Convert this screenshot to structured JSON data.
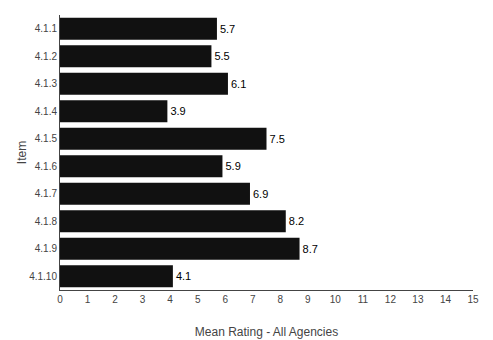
{
  "chart_data": {
    "type": "bar",
    "orientation": "horizontal",
    "categories": [
      "4.1.1",
      "4.1.2",
      "4.1.3",
      "4.1.4",
      "4.1.5",
      "4.1.6",
      "4.1.7",
      "4.1.8",
      "4.1.9",
      "4.1.10"
    ],
    "values": [
      5.7,
      5.5,
      6.1,
      3.9,
      7.5,
      5.9,
      6.9,
      8.2,
      8.7,
      4.1
    ],
    "color": "#111111",
    "xlabel": "Mean Rating - All Agencies",
    "ylabel": "Item",
    "xlim": [
      0,
      15
    ],
    "xticks": [
      0,
      1,
      2,
      3,
      4,
      5,
      6,
      7,
      8,
      9,
      10,
      11,
      12,
      13,
      14,
      15
    ],
    "grid": false,
    "data_labels": true
  }
}
